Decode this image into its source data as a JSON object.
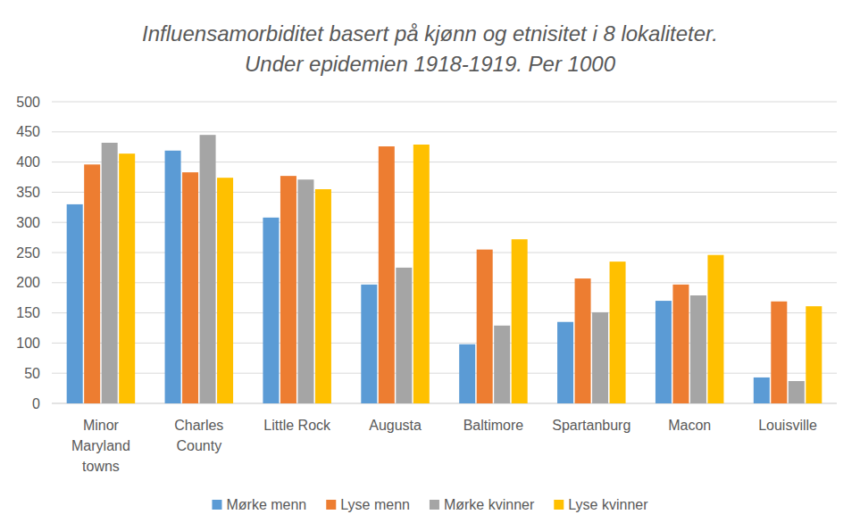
{
  "chart_data": {
    "type": "bar",
    "title": "Influensamorbiditet basert på kjønn og etnisitet i 8 lokaliteter.",
    "subtitle": "Under epidemien 1918-1919. Per 1000",
    "categories": [
      "Minor Maryland towns",
      "Charles County",
      "Little Rock",
      "Augusta",
      "Baltimore",
      "Spartanburg",
      "Macon",
      "Louisville"
    ],
    "series": [
      {
        "name": "Mørke menn",
        "color": "#5b9bd5",
        "values": [
          330,
          419,
          308,
          197,
          98,
          135,
          170,
          43
        ]
      },
      {
        "name": "Lyse menn",
        "color": "#ed7d31",
        "values": [
          396,
          383,
          377,
          426,
          255,
          207,
          197,
          169
        ]
      },
      {
        "name": "Mørke kvinner",
        "color": "#a5a5a5",
        "values": [
          432,
          445,
          371,
          225,
          129,
          151,
          179,
          37
        ]
      },
      {
        "name": "Lyse kvinner",
        "color": "#ffc000",
        "values": [
          414,
          374,
          355,
          429,
          272,
          235,
          246,
          161
        ]
      }
    ],
    "ylim": [
      0,
      500
    ],
    "yticks": [
      0,
      50,
      100,
      150,
      200,
      250,
      300,
      350,
      400,
      450,
      500
    ],
    "grid": true,
    "legend": "bottom"
  }
}
